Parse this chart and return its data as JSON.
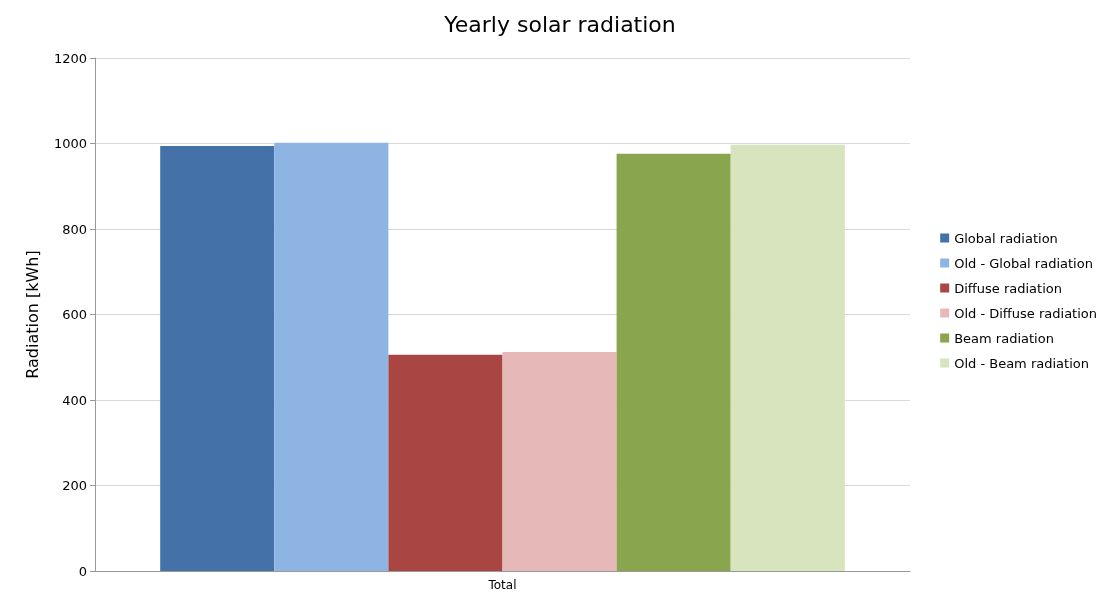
{
  "chart_data": {
    "type": "bar",
    "title": "Yearly solar radiation",
    "ylabel": "Radiation [kWh]",
    "categories": [
      "Total"
    ],
    "series": [
      {
        "name": "Global radiation",
        "color": "#4472a8",
        "values": [
          994
        ]
      },
      {
        "name": "Old - Global radiation",
        "color": "#8eb4e3",
        "values": [
          1002
        ]
      },
      {
        "name": "Diffuse radiation",
        "color": "#a94542",
        "values": [
          506
        ]
      },
      {
        "name": "Old - Diffuse radiation",
        "color": "#e6b9b8",
        "values": [
          512
        ]
      },
      {
        "name": "Beam radiation",
        "color": "#89a54e",
        "values": [
          976
        ]
      },
      {
        "name": "Old - Beam radiation",
        "color": "#d7e4bd",
        "values": [
          997
        ]
      }
    ],
    "ylim": [
      0,
      1200
    ],
    "yticks": [
      0,
      200,
      400,
      600,
      800,
      1000,
      1200
    ],
    "grid": "y",
    "legend": "right"
  }
}
